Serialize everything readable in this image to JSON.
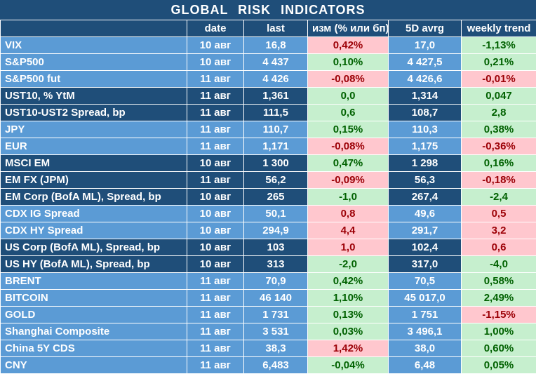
{
  "title": "GLOBAL  RISK  INDICATORS",
  "headers": [
    "",
    "date",
    "last",
    "изм (% или бп)",
    "5D avrg",
    "weekly trend"
  ],
  "rows": [
    {
      "name": "VIX",
      "date": "10 авг",
      "last": "16,8",
      "chg": "0,42%",
      "chg_sign": "neg",
      "avg": "17,0",
      "trend": "-1,13%",
      "trend_sign": "pos",
      "group": "blue",
      "sep": false
    },
    {
      "name": "S&P500",
      "date": "10 авг",
      "last": "4 437",
      "chg": "0,10%",
      "chg_sign": "pos",
      "avg": "4 427,5",
      "trend": "0,21%",
      "trend_sign": "pos",
      "group": "blue",
      "sep": false
    },
    {
      "name": "S&P500 fut",
      "date": "11 авг",
      "last": "4 426",
      "chg": "-0,08%",
      "chg_sign": "neg",
      "avg": "4 426,6",
      "trend": "-0,01%",
      "trend_sign": "neg",
      "group": "blue",
      "sep": false
    },
    {
      "name": "UST10, % YtM",
      "date": "11 авг",
      "last": "1,361",
      "chg": "0,0",
      "chg_sign": "pos",
      "avg": "1,314",
      "trend": "0,047",
      "trend_sign": "pos",
      "group": "navy",
      "sep": true
    },
    {
      "name": "UST10-UST2 Spread, bp",
      "date": "11 авг",
      "last": "111,5",
      "chg": "0,6",
      "chg_sign": "pos",
      "avg": "108,7",
      "trend": "2,8",
      "trend_sign": "pos",
      "group": "navy",
      "sep": false
    },
    {
      "name": "JPY",
      "date": "11 авг",
      "last": "110,7",
      "chg": "0,15%",
      "chg_sign": "pos",
      "avg": "110,3",
      "trend": "0,38%",
      "trend_sign": "pos",
      "group": "blue",
      "sep": true
    },
    {
      "name": "EUR",
      "date": "11 авг",
      "last": "1,171",
      "chg": "-0,08%",
      "chg_sign": "neg",
      "avg": "1,175",
      "trend": "-0,36%",
      "trend_sign": "neg",
      "group": "blue",
      "sep": false
    },
    {
      "name": "MSCI EM",
      "date": "10 авг",
      "last": "1 300",
      "chg": "0,47%",
      "chg_sign": "pos",
      "avg": "1 298",
      "trend": "0,16%",
      "trend_sign": "pos",
      "group": "navy",
      "sep": true
    },
    {
      "name": "EM FX (JPM)",
      "date": "11 авг",
      "last": "56,2",
      "chg": "-0,09%",
      "chg_sign": "neg",
      "avg": "56,3",
      "trend": "-0,18%",
      "trend_sign": "neg",
      "group": "navy",
      "sep": false
    },
    {
      "name": "EM Corp (BofA ML), Spread, bp",
      "date": "10 авг",
      "last": "265",
      "chg": "-1,0",
      "chg_sign": "pos",
      "avg": "267,4",
      "trend": "-2,4",
      "trend_sign": "pos",
      "group": "navy",
      "sep": false
    },
    {
      "name": "CDX IG Spread",
      "date": "10 авг",
      "last": "50,1",
      "chg": "0,8",
      "chg_sign": "neg",
      "avg": "49,6",
      "trend": "0,5",
      "trend_sign": "neg",
      "group": "blue",
      "sep": true
    },
    {
      "name": "CDX HY Spread",
      "date": "10 авг",
      "last": "294,9",
      "chg": "4,4",
      "chg_sign": "neg",
      "avg": "291,7",
      "trend": "3,2",
      "trend_sign": "neg",
      "group": "blue",
      "sep": false
    },
    {
      "name": "US Corp (BofA ML), Spread, bp",
      "date": "10 авг",
      "last": "103",
      "chg": "1,0",
      "chg_sign": "neg",
      "avg": "102,4",
      "trend": "0,6",
      "trend_sign": "neg",
      "group": "navy",
      "sep": true
    },
    {
      "name": "US HY (BofA ML), Spread, bp",
      "date": "10 авг",
      "last": "313",
      "chg": "-2,0",
      "chg_sign": "pos",
      "avg": "317,0",
      "trend": "-4,0",
      "trend_sign": "pos",
      "group": "navy",
      "sep": false
    },
    {
      "name": "BRENT",
      "date": "11 авг",
      "last": "70,9",
      "chg": "0,42%",
      "chg_sign": "pos",
      "avg": "70,5",
      "trend": "0,58%",
      "trend_sign": "pos",
      "group": "blue",
      "sep": true
    },
    {
      "name": "BITCOIN",
      "date": "11 авг",
      "last": "46 140",
      "chg": "1,10%",
      "chg_sign": "pos",
      "avg": "45 017,0",
      "trend": "2,49%",
      "trend_sign": "pos",
      "group": "blue",
      "sep": false
    },
    {
      "name": "GOLD",
      "date": "11 авг",
      "last": "1 731",
      "chg": "0,13%",
      "chg_sign": "pos",
      "avg": "1 751",
      "trend": "-1,15%",
      "trend_sign": "neg",
      "group": "blue",
      "sep": false
    },
    {
      "name": "Shanghai Composite",
      "date": "11 авг",
      "last": "3 531",
      "chg": "0,03%",
      "chg_sign": "pos",
      "avg": "3 496,1",
      "trend": "1,00%",
      "trend_sign": "pos",
      "group": "blue",
      "sep": true
    },
    {
      "name": "China 5Y CDS",
      "date": "11 авг",
      "last": "38,3",
      "chg": "1,42%",
      "chg_sign": "neg",
      "avg": "38,0",
      "trend": "0,60%",
      "trend_sign": "pos",
      "group": "blue",
      "sep": false
    },
    {
      "name": "CNY",
      "date": "11 авг",
      "last": "6,483",
      "chg": "-0,04%",
      "chg_sign": "pos",
      "avg": "6,48",
      "trend": "0,05%",
      "trend_sign": "pos",
      "group": "blue",
      "sep": false
    }
  ]
}
